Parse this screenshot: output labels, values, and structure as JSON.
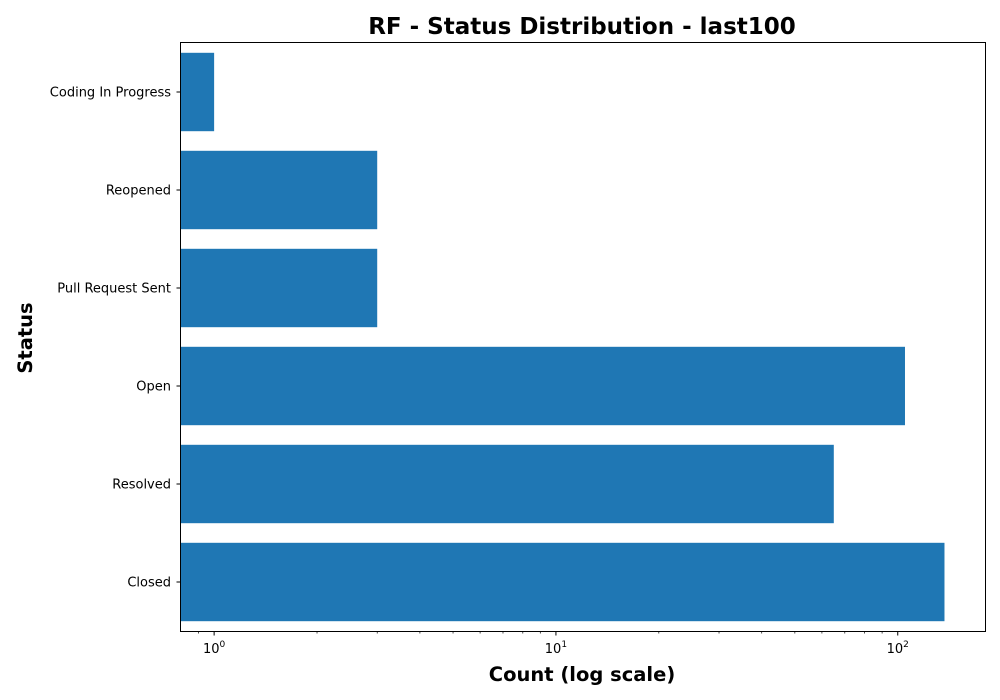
{
  "chart_data": {
    "type": "bar",
    "orientation": "horizontal",
    "title": "RF - Status Distribution - last100",
    "xlabel": "Count (log scale)",
    "ylabel": "Status",
    "xscale": "log",
    "xlim": [
      0.8,
      180
    ],
    "x_ticks": [
      {
        "base": "10",
        "exp": "0",
        "value": 1
      },
      {
        "base": "10",
        "exp": "1",
        "value": 10
      },
      {
        "base": "10",
        "exp": "2",
        "value": 100
      }
    ],
    "categories": [
      "Closed",
      "Resolved",
      "Open",
      "Pull Request Sent",
      "Reopened",
      "Coding In Progress"
    ],
    "values": [
      137,
      65,
      105,
      3,
      3,
      1
    ],
    "bar_color": "#1f77b4",
    "grid": false,
    "legend": "none"
  }
}
